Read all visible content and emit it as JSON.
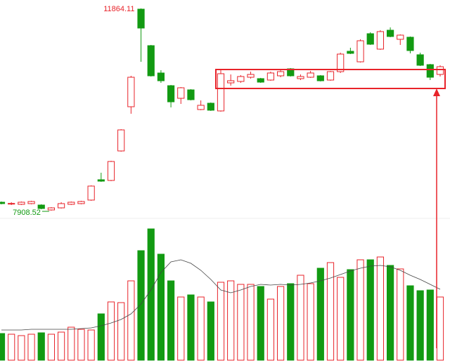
{
  "chart_data": {
    "type": "candlestick",
    "open": [
      8073,
      8046,
      8032,
      8046,
      8018,
      7922,
      7963,
      8032,
      8046,
      8115,
      8513,
      8499,
      9076,
      9941,
      11850,
      11136,
      10601,
      10353,
      10106,
      10271,
      9886,
      10010,
      9859,
      10408,
      10436,
      10518,
      10491,
      10463,
      10546,
      10683,
      10491,
      10518,
      10546,
      10463,
      10628,
      11026,
      10820,
      11370,
      11068,
      11438,
      11260,
      11301,
      10958,
      10765,
      10573
    ],
    "high": [
      8087,
      8073,
      8087,
      8101,
      8032,
      7977,
      8073,
      8087,
      8101,
      8403,
      8650,
      8884,
      9502,
      10546,
      11864.11,
      11150,
      10656,
      10367,
      10326,
      10285,
      10065,
      10024,
      10655,
      10573,
      10560,
      10628,
      10505,
      10628,
      10655,
      10697,
      10573,
      10642,
      10560,
      10642,
      10999,
      11095,
      11260,
      11397,
      11438,
      11493,
      11356,
      11315,
      10999,
      10779,
      10752
    ],
    "low": [
      8032,
      8018,
      8018,
      8032,
      7936,
      7908.52,
      7950,
      8018,
      8032,
      8101,
      8471,
      8485,
      9062,
      9804,
      10820,
      10532,
      10408,
      9928,
      9996,
      10065,
      9873,
      9859,
      9845,
      10353,
      10408,
      10491,
      10408,
      10449,
      10518,
      10532,
      10463,
      10505,
      10436,
      10449,
      10601,
      10971,
      10806,
      11150,
      11054,
      11301,
      11150,
      10985,
      10738,
      10463,
      10532
    ],
    "close": [
      8046,
      8050,
      8073,
      8087,
      7950,
      7963,
      8046,
      8073,
      8087,
      8389,
      8485,
      8870,
      9488,
      10518,
      11480,
      10546,
      10449,
      10037,
      10312,
      10079,
      9969,
      9873,
      10587,
      10450,
      10532,
      10573,
      10422,
      10601,
      10628,
      10546,
      10532,
      10601,
      10449,
      10628,
      10971,
      10985,
      11232,
      11164,
      11411,
      11315,
      11342,
      11040,
      10752,
      10518,
      10724
    ],
    "volume": [
      38,
      37,
      35,
      37,
      39,
      37,
      40,
      47,
      44,
      43,
      66,
      83,
      82,
      113,
      156,
      187,
      151,
      113,
      90,
      93,
      90,
      83,
      111,
      113,
      108,
      108,
      105,
      87,
      105,
      109,
      121,
      109,
      131,
      139,
      118,
      129,
      143,
      143,
      147,
      135,
      130,
      106,
      99,
      100,
      90
    ],
    "volume_ma": [
      43,
      43,
      43,
      44,
      44,
      44,
      44,
      44,
      45,
      46,
      49,
      53,
      58,
      66,
      80,
      100,
      125,
      140,
      143,
      138,
      128,
      115,
      100,
      96,
      100,
      105,
      108,
      107,
      108,
      107,
      108,
      110,
      113,
      117,
      122,
      127,
      131,
      134,
      135,
      133,
      128,
      121,
      115,
      108,
      101
    ],
    "ylim": [
      7771,
      12029
    ],
    "vlim": [
      0,
      203
    ],
    "up_color": "#e8232a",
    "down_color": "#129a12",
    "ma_color": "#444444"
  }
}
